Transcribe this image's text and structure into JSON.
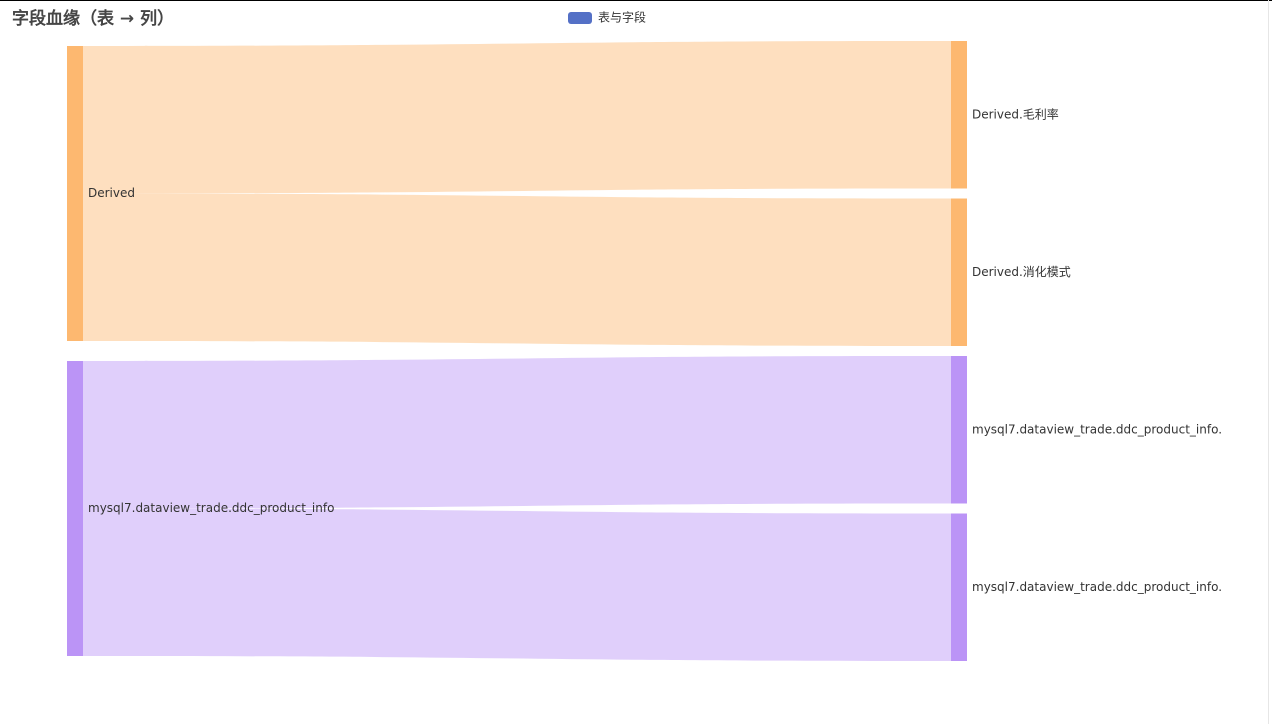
{
  "chart_data": {
    "type": "sankey",
    "title": "字段血缘（表 → 列）",
    "legend": [
      {
        "name": "表与字段",
        "color": "#5470c6"
      }
    ],
    "nodes": [
      {
        "name": "Derived",
        "color": "#fdb870",
        "column": 0
      },
      {
        "name": "mysql7.dataview_trade.ddc_product_info",
        "color": "#bb94f6",
        "column": 0
      },
      {
        "name": "Derived.毛利率",
        "color": "#fdb870",
        "column": 1
      },
      {
        "name": "Derived.消化模式",
        "color": "#fdb870",
        "column": 1
      },
      {
        "name": "mysql7.dataview_trade.ddc_product_info.",
        "color": "#bb94f6",
        "column": 1
      },
      {
        "name": "mysql7.dataview_trade.ddc_product_info.",
        "color": "#bb94f6",
        "column": 1
      }
    ],
    "links": [
      {
        "source": 0,
        "target": 2,
        "value": 1
      },
      {
        "source": 0,
        "target": 3,
        "value": 1
      },
      {
        "source": 1,
        "target": 4,
        "value": 1
      },
      {
        "source": 1,
        "target": 5,
        "value": 1
      }
    ]
  }
}
